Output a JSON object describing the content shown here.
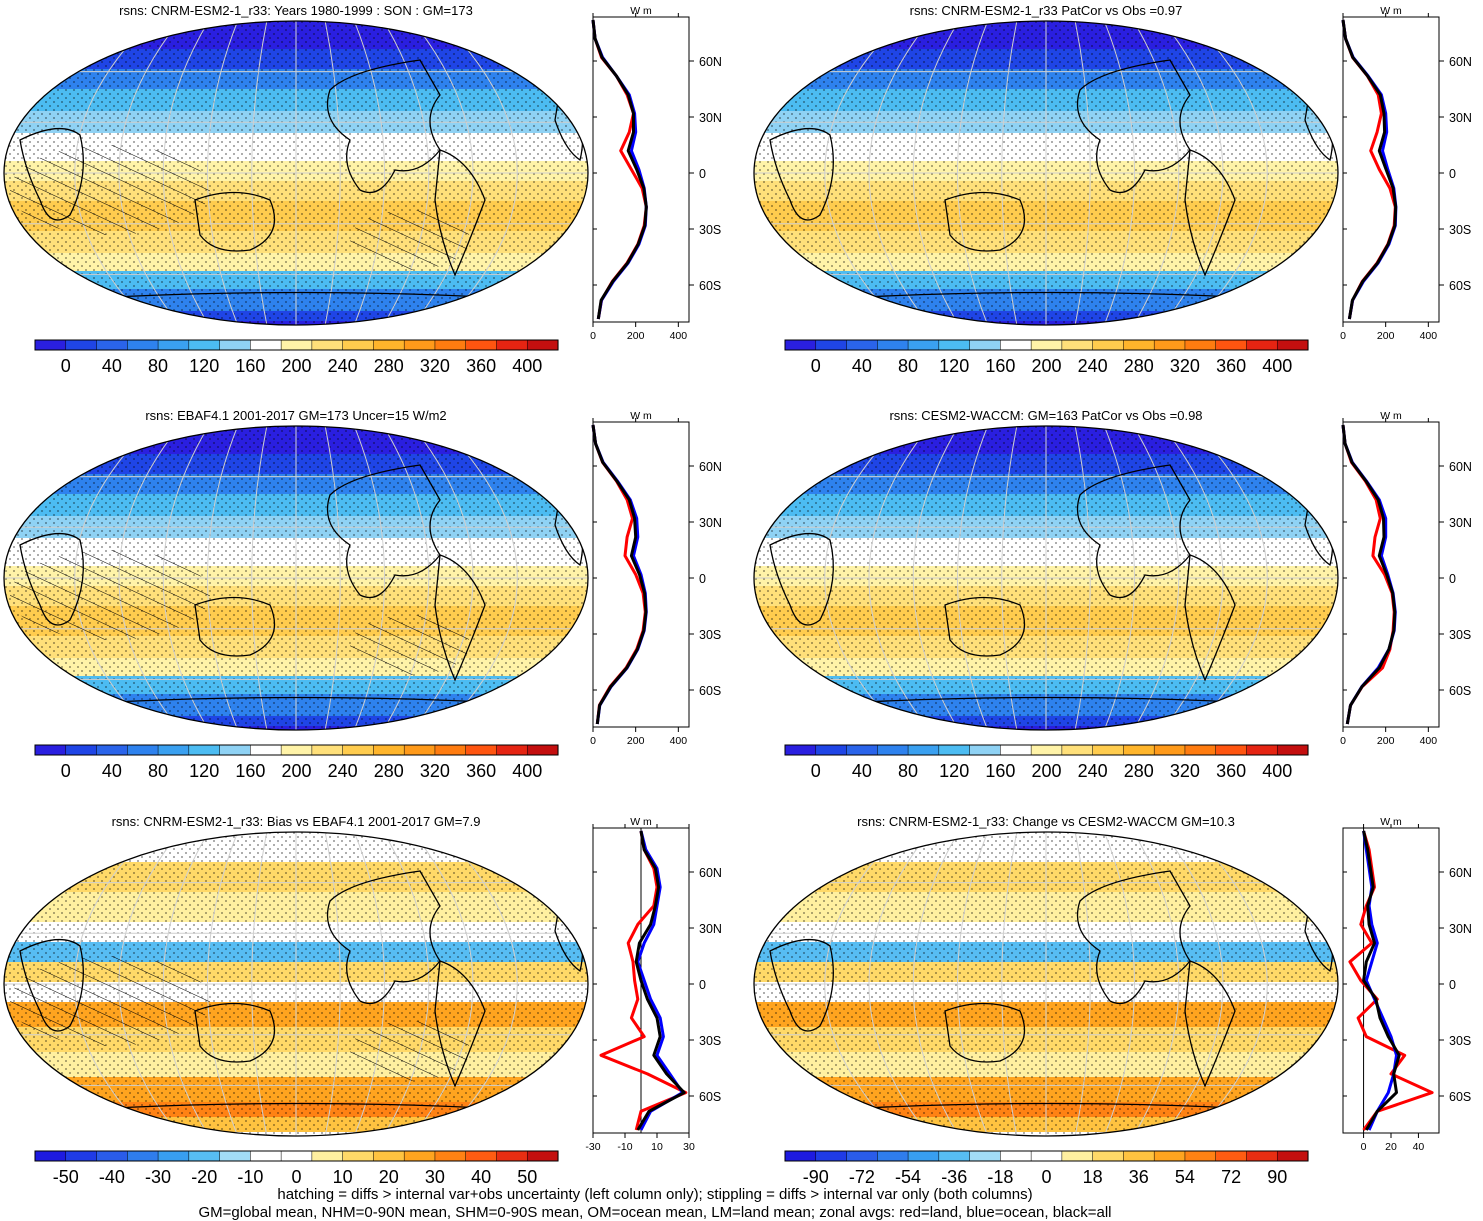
{
  "chart_data": [
    {
      "type": "map",
      "variable": "rsns",
      "title": "rsns: CNRM-ESM2-1_r33: Years 1980-1999 : SON : GM=173",
      "colorbar_ticks": [
        "0",
        "40",
        "80",
        "120",
        "160",
        "200",
        "240",
        "280",
        "320",
        "360",
        "400"
      ],
      "zonal": {
        "units": "W m",
        "xticks": [
          "0",
          "200",
          "400"
        ],
        "xlim": [
          0,
          450
        ],
        "lat_ticks": [
          "60N",
          "30N",
          "0",
          "30S",
          "60S"
        ],
        "series": [
          {
            "name": "red",
            "color": "#ff0000",
            "values": [
              0,
              10,
              40,
              110,
              160,
              190,
              170,
              130,
              180,
              230,
              250,
              240,
              210,
              160,
              90,
              40,
              25
            ]
          },
          {
            "name": "blue",
            "color": "#0000ff",
            "values": [
              0,
              10,
              45,
              110,
              170,
              195,
              200,
              180,
              215,
              240,
              250,
              245,
              215,
              165,
              95,
              40,
              25
            ]
          },
          {
            "name": "black",
            "color": "#000000",
            "values": [
              0,
              10,
              42,
              110,
              165,
              190,
              190,
              165,
              205,
              238,
              250,
              243,
              212,
              162,
              92,
              38,
              25
            ]
          }
        ]
      }
    },
    {
      "type": "map",
      "variable": "rsns",
      "title": "rsns: CNRM-ESM2-1_r33 PatCor vs Obs =0.97",
      "colorbar_ticks": [
        "0",
        "40",
        "80",
        "120",
        "160",
        "200",
        "240",
        "280",
        "320",
        "360",
        "400"
      ],
      "zonal": {
        "units": "W m",
        "xticks": [
          "0",
          "200",
          "400"
        ],
        "xlim": [
          0,
          450
        ],
        "lat_ticks": [
          "60N",
          "30N",
          "0",
          "30S",
          "60S"
        ],
        "series": [
          {
            "name": "red",
            "color": "#ff0000",
            "values": [
              0,
              12,
              45,
              115,
              165,
              180,
              160,
              130,
              170,
              220,
              245,
              240,
              210,
              160,
              90,
              45,
              30
            ]
          },
          {
            "name": "blue",
            "color": "#0000ff",
            "values": [
              0,
              12,
              48,
              118,
              180,
              200,
              205,
              185,
              210,
              238,
              248,
              245,
              215,
              165,
              95,
              45,
              30
            ]
          },
          {
            "name": "black",
            "color": "#000000",
            "values": [
              0,
              12,
              46,
              116,
              175,
              192,
              195,
              170,
              202,
              235,
              247,
              243,
              212,
              162,
              92,
              44,
              30
            ]
          }
        ]
      }
    },
    {
      "type": "map",
      "variable": "rsns",
      "title": "rsns: EBAF4.1 2001-2017 GM=173 Uncer=15 W/m2",
      "colorbar_ticks": [
        "0",
        "40",
        "80",
        "120",
        "160",
        "200",
        "240",
        "280",
        "320",
        "360",
        "400"
      ],
      "zonal": {
        "units": "W m",
        "xticks": [
          "0",
          "200",
          "400"
        ],
        "xlim": [
          0,
          450
        ],
        "lat_ticks": [
          "60N",
          "30N",
          "0",
          "30S",
          "60S"
        ],
        "series": [
          {
            "name": "red",
            "color": "#ff0000",
            "values": [
              0,
              12,
              45,
              110,
              160,
              185,
              160,
              150,
              200,
              235,
              245,
              235,
              205,
              155,
              80,
              30,
              20
            ]
          },
          {
            "name": "blue",
            "color": "#0000ff",
            "values": [
              0,
              12,
              48,
              115,
              175,
              205,
              210,
              190,
              225,
              245,
              250,
              240,
              210,
              160,
              85,
              32,
              20
            ]
          },
          {
            "name": "black",
            "color": "#000000",
            "values": [
              0,
              12,
              46,
              112,
              170,
              195,
              200,
              180,
              218,
              242,
              248,
              238,
              208,
              158,
              83,
              31,
              20
            ]
          }
        ]
      }
    },
    {
      "type": "map",
      "variable": "rsns",
      "title": "rsns: CESM2-WACCM: GM=163 PatCor vs Obs =0.98",
      "colorbar_ticks": [
        "0",
        "40",
        "80",
        "120",
        "160",
        "200",
        "240",
        "280",
        "320",
        "360",
        "400"
      ],
      "zonal": {
        "units": "W m",
        "xticks": [
          "0",
          "200",
          "400"
        ],
        "xlim": [
          0,
          450
        ],
        "lat_ticks": [
          "60N",
          "30N",
          "0",
          "30S",
          "60S"
        ],
        "series": [
          {
            "name": "red",
            "color": "#ff0000",
            "values": [
              0,
              10,
              40,
              105,
              155,
              175,
              150,
              140,
              195,
              230,
              240,
              235,
              220,
              185,
              90,
              35,
              20
            ]
          },
          {
            "name": "blue",
            "color": "#0000ff",
            "values": [
              0,
              10,
              44,
              110,
              170,
              200,
              200,
              180,
              210,
              235,
              245,
              240,
              215,
              165,
              88,
              35,
              20
            ]
          },
          {
            "name": "black",
            "color": "#000000",
            "values": [
              0,
              10,
              42,
              108,
              165,
              190,
              192,
              170,
              205,
              233,
              243,
              238,
              215,
              170,
              89,
              35,
              20
            ]
          }
        ]
      }
    },
    {
      "type": "map",
      "variable": "rsns",
      "title": "rsns: CNRM-ESM2-1_r33: Bias vs EBAF4.1 2001-2017  GM=7.9",
      "colorbar_ticks": [
        "-50",
        "-40",
        "-30",
        "-20",
        "-10",
        "0",
        "10",
        "20",
        "30",
        "40",
        "50"
      ],
      "zonal": {
        "units": "W m",
        "xticks": [
          "-30",
          "-10",
          "10",
          "30"
        ],
        "xlim": [
          -30,
          30
        ],
        "lat_ticks": [
          "60N",
          "30N",
          "0",
          "30S",
          "60S"
        ],
        "series": [
          {
            "name": "red",
            "color": "#ff0000",
            "values": [
              0,
              2,
              8,
              10,
              8,
              -2,
              -8,
              -5,
              -4,
              -2,
              -6,
              2,
              -25,
              4,
              28,
              0,
              -3
            ]
          },
          {
            "name": "blue",
            "color": "#0000ff",
            "values": [
              0,
              3,
              10,
              12,
              10,
              8,
              2,
              -2,
              2,
              6,
              12,
              14,
              10,
              18,
              26,
              6,
              0
            ]
          },
          {
            "name": "black",
            "color": "#000000",
            "values": [
              0,
              2,
              9,
              11,
              9,
              6,
              -1,
              -3,
              0,
              4,
              10,
              12,
              8,
              16,
              27,
              5,
              -2
            ]
          }
        ]
      }
    },
    {
      "type": "map",
      "variable": "rsns",
      "title": "rsns: CNRM-ESM2-1_r33: Change vs CESM2-WACCM GM=10.3",
      "colorbar_ticks": [
        "-90",
        "-72",
        "-54",
        "-36",
        "-18",
        "0",
        "18",
        "36",
        "54",
        "72",
        "90"
      ],
      "zonal": {
        "units": "W m",
        "xticks": [
          "0",
          "20",
          "40"
        ],
        "xlim": [
          -15,
          55
        ],
        "lat_ticks": [
          "60N",
          "30N",
          "0",
          "30S",
          "60S"
        ],
        "series": [
          {
            "name": "red",
            "color": "#ff0000",
            "values": [
              0,
              4,
              6,
              8,
              2,
              -2,
              6,
              -10,
              -2,
              10,
              -4,
              2,
              30,
              20,
              50,
              10,
              0
            ]
          },
          {
            "name": "blue",
            "color": "#0000ff",
            "values": [
              0,
              2,
              4,
              6,
              4,
              6,
              10,
              6,
              2,
              8,
              14,
              20,
              24,
              22,
              18,
              10,
              4
            ]
          },
          {
            "name": "black",
            "color": "#000000",
            "values": [
              0,
              3,
              5,
              7,
              3,
              4,
              8,
              2,
              0,
              9,
              12,
              18,
              26,
              22,
              24,
              10,
              2
            ]
          }
        ]
      }
    }
  ],
  "footer": {
    "line1": "hatching = diffs > internal var+obs uncertainty (left column only); stippling = diffs > internal var only (both columns)",
    "line2": "GM=global mean, NHM=0-90N mean, SHM=0-90S mean, OM=ocean mean, LM=land mean; zonal avgs: red=land, blue=ocean, black=all"
  },
  "palettes": {
    "abs": [
      "#2a1fe0",
      "#1f45e6",
      "#2a64ea",
      "#2e82ee",
      "#3aa0f0",
      "#4cbcf2",
      "#8fd2f4",
      "#ffffff",
      "#fff3a8",
      "#ffe07a",
      "#ffcc4e",
      "#ffb52b",
      "#ff9a1a",
      "#ff7c10",
      "#ff5510",
      "#e52412",
      "#c40f0f"
    ],
    "diff": [
      "#1e1ae0",
      "#1f3be6",
      "#2a5cea",
      "#2f7ded",
      "#389ef0",
      "#57bdf3",
      "#a2dcf6",
      "#ffffff",
      "#ffffff",
      "#fff0a0",
      "#ffd968",
      "#ffc340",
      "#ffa41f",
      "#ff8214",
      "#ff5c12",
      "#e82e12",
      "#c4100f"
    ]
  }
}
